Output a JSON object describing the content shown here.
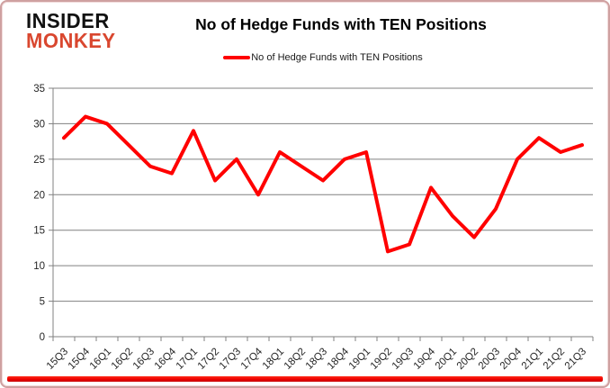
{
  "header": {
    "logo_line1": "INSIDER",
    "logo_line2": "MONKEY",
    "title": "No of Hedge Funds with TEN Positions"
  },
  "legend": {
    "label": "No of Hedge Funds with TEN Positions"
  },
  "colors": {
    "series_line": "#ff0000",
    "logo_accent": "#d9472f",
    "axis_gray": "#808080",
    "tick_label": "#262626",
    "bottom_bar_red": "#ee0000"
  },
  "chart_data": {
    "type": "line",
    "title": "No of Hedge Funds with TEN Positions",
    "legend": [
      "No of Hedge Funds with TEN Positions"
    ],
    "legend_position": "top",
    "categories": [
      "15Q3",
      "15Q4",
      "16Q1",
      "16Q2",
      "16Q3",
      "16Q4",
      "17Q1",
      "17Q2",
      "17Q3",
      "17Q4",
      "18Q1",
      "18Q2",
      "18Q3",
      "18Q4",
      "19Q1",
      "19Q2",
      "19Q3",
      "19Q4",
      "20Q1",
      "20Q2",
      "20Q3",
      "20Q4",
      "21Q1",
      "21Q2",
      "21Q3"
    ],
    "values": [
      28,
      31,
      30,
      27,
      24,
      23,
      29,
      22,
      25,
      20,
      26,
      24,
      22,
      25,
      26,
      12,
      13,
      21,
      17,
      14,
      18,
      25,
      28,
      26,
      27
    ],
    "xlabel": "",
    "ylabel": "",
    "ylim": [
      0,
      35
    ],
    "yticks": [
      0,
      5,
      10,
      15,
      20,
      25,
      30,
      35
    ],
    "grid": true,
    "line_color": "#ff0000",
    "line_width": 4
  }
}
